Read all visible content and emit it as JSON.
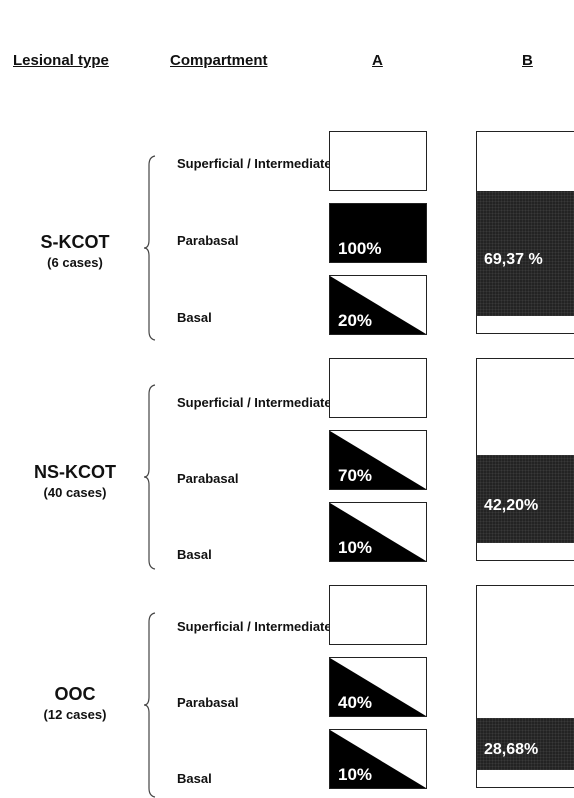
{
  "headers": {
    "lesional_type": "Lesional type",
    "compartment": "Compartment",
    "a": "A",
    "b": "B"
  },
  "groups": [
    {
      "name": "S-KCOT",
      "cases": "(6 cases)",
      "compartments": [
        "Superficial / Intermediate",
        "Parabasal",
        "Basal"
      ],
      "a_values": [
        {
          "label": "",
          "fill": "empty"
        },
        {
          "label": "100%",
          "fill": "full"
        },
        {
          "label": "20%",
          "fill": "diagonal"
        }
      ],
      "b_label": "69,37 %"
    },
    {
      "name": "NS-KCOT",
      "cases": "(40 cases)",
      "compartments": [
        "Superficial / Intermediate",
        "Parabasal",
        "Basal"
      ],
      "a_values": [
        {
          "label": "",
          "fill": "empty"
        },
        {
          "label": "70%",
          "fill": "diagonal"
        },
        {
          "label": "10%",
          "fill": "diagonal"
        }
      ],
      "b_label": "42,20%"
    },
    {
      "name": "OOC",
      "cases": "(12 cases)",
      "compartments": [
        "Superficial / Intermediate",
        "Parabasal",
        "Basal"
      ],
      "a_values": [
        {
          "label": "",
          "fill": "empty"
        },
        {
          "label": "40%",
          "fill": "diagonal"
        },
        {
          "label": "10%",
          "fill": "diagonal"
        }
      ],
      "b_label": "28,68%"
    }
  ],
  "colors": {
    "fill": "#000000",
    "b_fill": "#232323",
    "border": "#222222"
  }
}
